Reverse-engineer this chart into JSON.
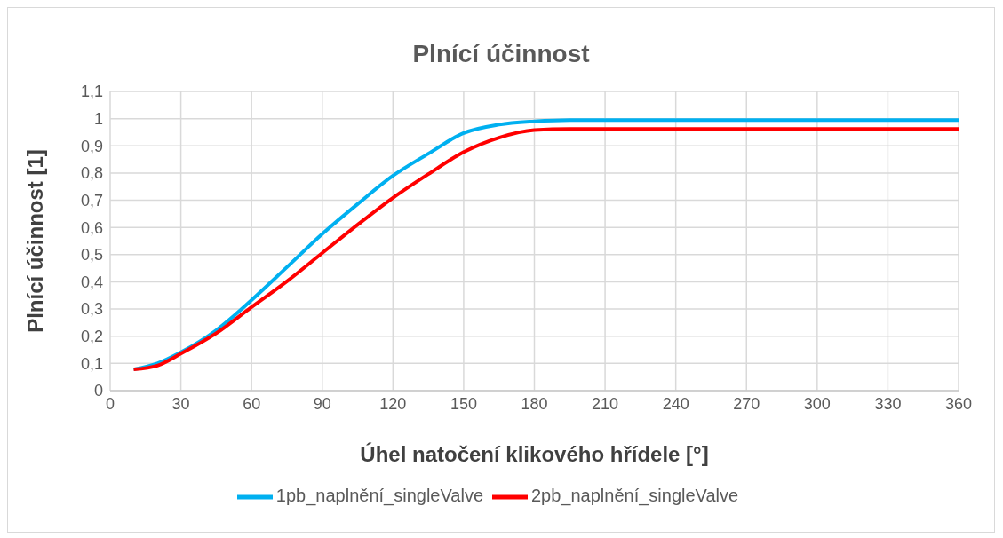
{
  "chart_data": {
    "type": "line",
    "title": "Plnící účinnost",
    "xlabel": "Úhel natočení klikového hřídele [°]",
    "ylabel": "Plnící účinnost [1]",
    "x": [
      10,
      20,
      30,
      45,
      60,
      75,
      90,
      105,
      120,
      135,
      150,
      165,
      180,
      195,
      210,
      240,
      270,
      300,
      330,
      360
    ],
    "series": [
      {
        "name": "1pb_naplnění_singleValve",
        "color": "#00b0f0",
        "values": [
          0.078,
          0.1,
          0.141,
          0.222,
          0.333,
          0.454,
          0.576,
          0.686,
          0.79,
          0.871,
          0.947,
          0.978,
          0.99,
          0.995,
          0.995,
          0.995,
          0.995,
          0.995,
          0.995,
          0.995
        ]
      },
      {
        "name": "2pb_naplnění_singleValve",
        "color": "#ff0000",
        "values": [
          0.078,
          0.092,
          0.136,
          0.211,
          0.307,
          0.402,
          0.506,
          0.61,
          0.709,
          0.796,
          0.877,
          0.93,
          0.958,
          0.962,
          0.962,
          0.962,
          0.962,
          0.962,
          0.962,
          0.962
        ]
      }
    ],
    "xlim": [
      0,
      360
    ],
    "xticks": [
      0,
      30,
      60,
      90,
      120,
      150,
      180,
      210,
      240,
      270,
      300,
      330,
      360
    ],
    "ylim": [
      0,
      1.1
    ],
    "yticks": [
      {
        "value": 0,
        "label": "0"
      },
      {
        "value": 0.1,
        "label": "0,1"
      },
      {
        "value": 0.2,
        "label": "0,2"
      },
      {
        "value": 0.3,
        "label": "0,3"
      },
      {
        "value": 0.4,
        "label": "0,4"
      },
      {
        "value": 0.5,
        "label": "0,5"
      },
      {
        "value": 0.6,
        "label": "0,6"
      },
      {
        "value": 0.7,
        "label": "0,7"
      },
      {
        "value": 0.8,
        "label": "0,8"
      },
      {
        "value": 0.9,
        "label": "0,9"
      },
      {
        "value": 1,
        "label": "1"
      },
      {
        "value": 1.1,
        "label": "1,1"
      }
    ],
    "grid": true,
    "legend": "bottom",
    "marker": "none",
    "line_style": "solid"
  }
}
